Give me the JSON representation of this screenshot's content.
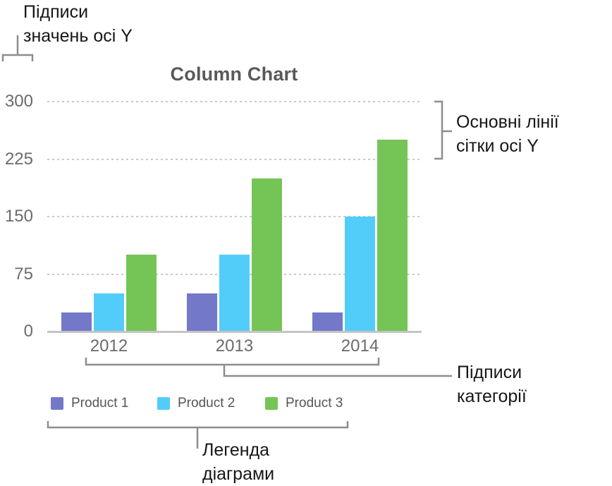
{
  "annotations": {
    "y_value_labels": "Підписи\nзначень осі Y",
    "y_gridlines": "Основні лінії\nсітки осі Y",
    "category_labels": "Підписи\nкатегорії",
    "legend": "Легенда\nдіаграми"
  },
  "chart_data": {
    "type": "bar",
    "title": "Column Chart",
    "categories": [
      "2012",
      "2013",
      "2014"
    ],
    "series": [
      {
        "name": "Product 1",
        "color": "#7478c9",
        "values": [
          25,
          50,
          25
        ]
      },
      {
        "name": "Product 2",
        "color": "#52cdf9",
        "values": [
          50,
          100,
          150
        ]
      },
      {
        "name": "Product 3",
        "color": "#75c556",
        "values": [
          100,
          200,
          250
        ]
      }
    ],
    "y_ticks": [
      0,
      75,
      150,
      225,
      300
    ],
    "ylim": [
      0,
      300
    ],
    "xlabel": "",
    "ylabel": "",
    "grid": "horizontal-dotted",
    "legend_position": "bottom"
  },
  "colors": {
    "bracket": "#8d8d8d",
    "grid": "#c9c9c9",
    "axis": "#c4c4c4",
    "chart_text": "#6b6b6b"
  }
}
